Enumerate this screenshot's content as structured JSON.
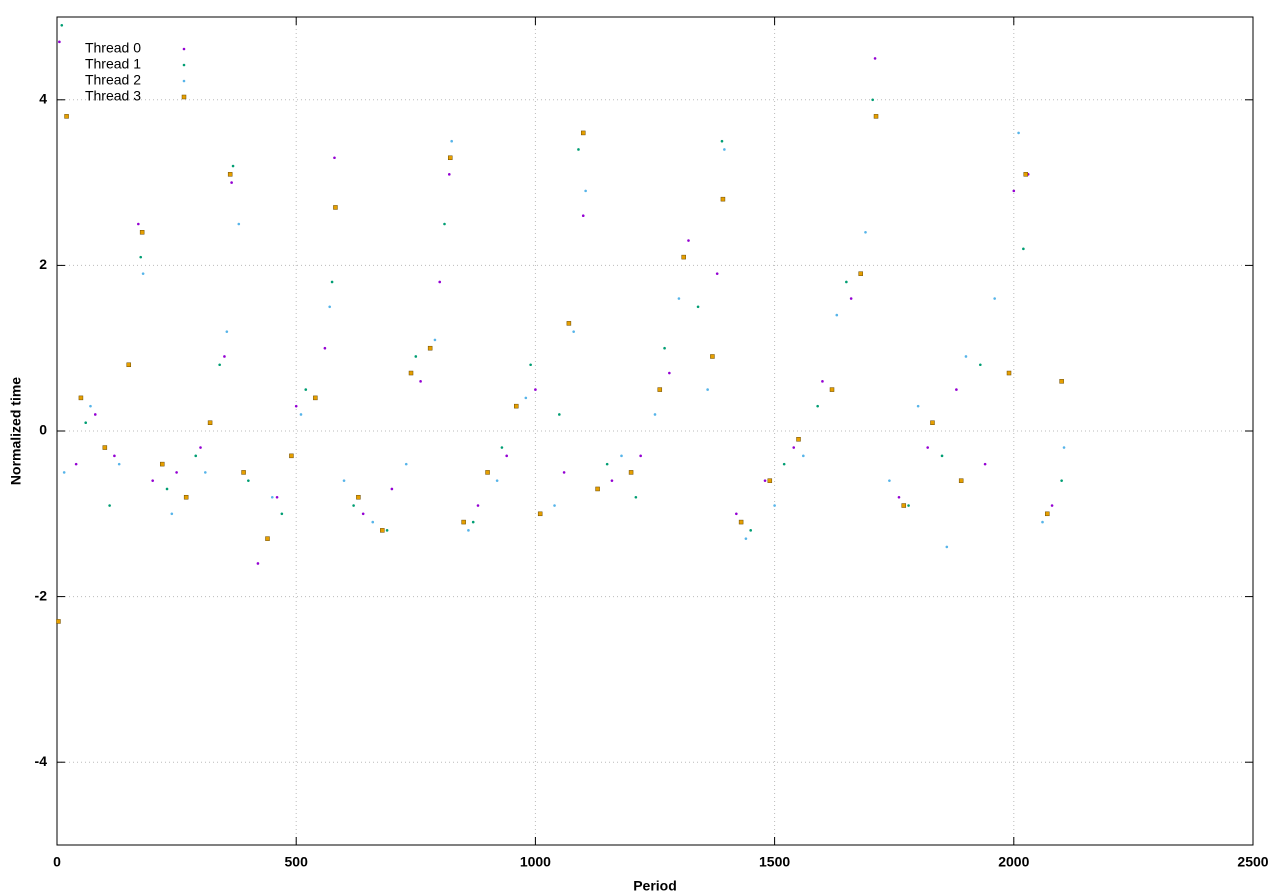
{
  "chart_data": {
    "type": "scatter",
    "xlabel": "Period",
    "ylabel": "Normalized time",
    "xlim": [
      0,
      2500
    ],
    "ylim": [
      -5,
      5
    ],
    "xticks": [
      0,
      500,
      1000,
      1500,
      2000,
      2500
    ],
    "yticks": [
      -4,
      -2,
      0,
      2,
      4
    ],
    "grid": true,
    "legend": "top-left",
    "series": [
      {
        "name": "Thread 0",
        "color": "#9400d3",
        "marker": "point",
        "x": [
          5,
          40,
          80,
          120,
          170,
          200,
          250,
          300,
          350,
          365,
          420,
          460,
          500,
          560,
          580,
          640,
          700,
          760,
          800,
          820,
          880,
          940,
          1000,
          1060,
          1100,
          1160,
          1220,
          1280,
          1320,
          1380,
          1420,
          1480,
          1540,
          1600,
          1660,
          1710,
          1760,
          1820,
          1880,
          1940,
          2000,
          2030,
          2080
        ],
        "values": [
          4.7,
          -0.4,
          0.2,
          -0.3,
          2.5,
          -0.6,
          -0.5,
          -0.2,
          0.9,
          3.0,
          -1.6,
          -0.8,
          0.3,
          1.0,
          3.3,
          -1.0,
          -0.7,
          0.6,
          1.8,
          3.1,
          -0.9,
          -0.3,
          0.5,
          -0.5,
          2.6,
          -0.6,
          -0.3,
          0.7,
          2.3,
          1.9,
          -1.0,
          -0.6,
          -0.2,
          0.6,
          1.6,
          4.5,
          -0.8,
          -0.2,
          0.5,
          -0.4,
          2.9,
          3.1,
          -0.9
        ]
      },
      {
        "name": "Thread 1",
        "color": "#009e73",
        "marker": "point",
        "x": [
          10,
          60,
          110,
          175,
          230,
          290,
          340,
          368,
          400,
          470,
          520,
          575,
          620,
          690,
          750,
          810,
          870,
          930,
          990,
          1050,
          1090,
          1150,
          1210,
          1270,
          1340,
          1390,
          1450,
          1520,
          1590,
          1650,
          1705,
          1780,
          1850,
          1930,
          2020,
          2100
        ],
        "values": [
          4.9,
          0.1,
          -0.9,
          2.1,
          -0.7,
          -0.3,
          0.8,
          3.2,
          -0.6,
          -1.0,
          0.5,
          1.8,
          -0.9,
          -1.2,
          0.9,
          2.5,
          -1.1,
          -0.2,
          0.8,
          0.2,
          3.4,
          -0.4,
          -0.8,
          1.0,
          1.5,
          3.5,
          -1.2,
          -0.4,
          0.3,
          1.8,
          4.0,
          -0.9,
          -0.3,
          0.8,
          2.2,
          -0.6
        ]
      },
      {
        "name": "Thread 2",
        "color": "#56b4e9",
        "marker": "point",
        "x": [
          15,
          70,
          130,
          180,
          240,
          310,
          355,
          380,
          450,
          510,
          570,
          600,
          660,
          730,
          790,
          825,
          860,
          920,
          980,
          1040,
          1080,
          1105,
          1180,
          1250,
          1300,
          1360,
          1395,
          1440,
          1500,
          1560,
          1630,
          1690,
          1740,
          1800,
          1860,
          1900,
          1960,
          2010,
          2060,
          2105
        ],
        "values": [
          -0.5,
          0.3,
          -0.4,
          1.9,
          -1.0,
          -0.5,
          1.2,
          2.5,
          -0.8,
          0.2,
          1.5,
          -0.6,
          -1.1,
          -0.4,
          1.1,
          3.5,
          -1.2,
          -0.6,
          0.4,
          -0.9,
          1.2,
          2.9,
          -0.3,
          0.2,
          1.6,
          0.5,
          3.4,
          -1.3,
          -0.9,
          -0.3,
          1.4,
          2.4,
          -0.6,
          0.3,
          -1.4,
          0.9,
          1.6,
          3.6,
          -1.1,
          -0.2
        ]
      },
      {
        "name": "Thread 3",
        "color": "#e69f00",
        "marker": "square",
        "x": [
          3,
          20,
          50,
          100,
          150,
          178,
          220,
          270,
          320,
          362,
          390,
          440,
          490,
          540,
          582,
          630,
          680,
          740,
          780,
          822,
          850,
          900,
          960,
          1010,
          1070,
          1100,
          1130,
          1200,
          1260,
          1310,
          1370,
          1392,
          1430,
          1490,
          1550,
          1620,
          1680,
          1712,
          1770,
          1830,
          1890,
          1990,
          2025,
          2070,
          2100
        ],
        "values": [
          -2.3,
          3.8,
          0.4,
          -0.2,
          0.8,
          2.4,
          -0.4,
          -0.8,
          0.1,
          3.1,
          -0.5,
          -1.3,
          -0.3,
          0.4,
          2.7,
          -0.8,
          -1.2,
          0.7,
          1.0,
          3.3,
          -1.1,
          -0.5,
          0.3,
          -1.0,
          1.3,
          3.6,
          -0.7,
          -0.5,
          0.5,
          2.1,
          0.9,
          2.8,
          -1.1,
          -0.6,
          -0.1,
          0.5,
          1.9,
          3.8,
          -0.9,
          0.1,
          -0.6,
          0.7,
          3.1,
          -1.0,
          0.6
        ]
      }
    ]
  }
}
